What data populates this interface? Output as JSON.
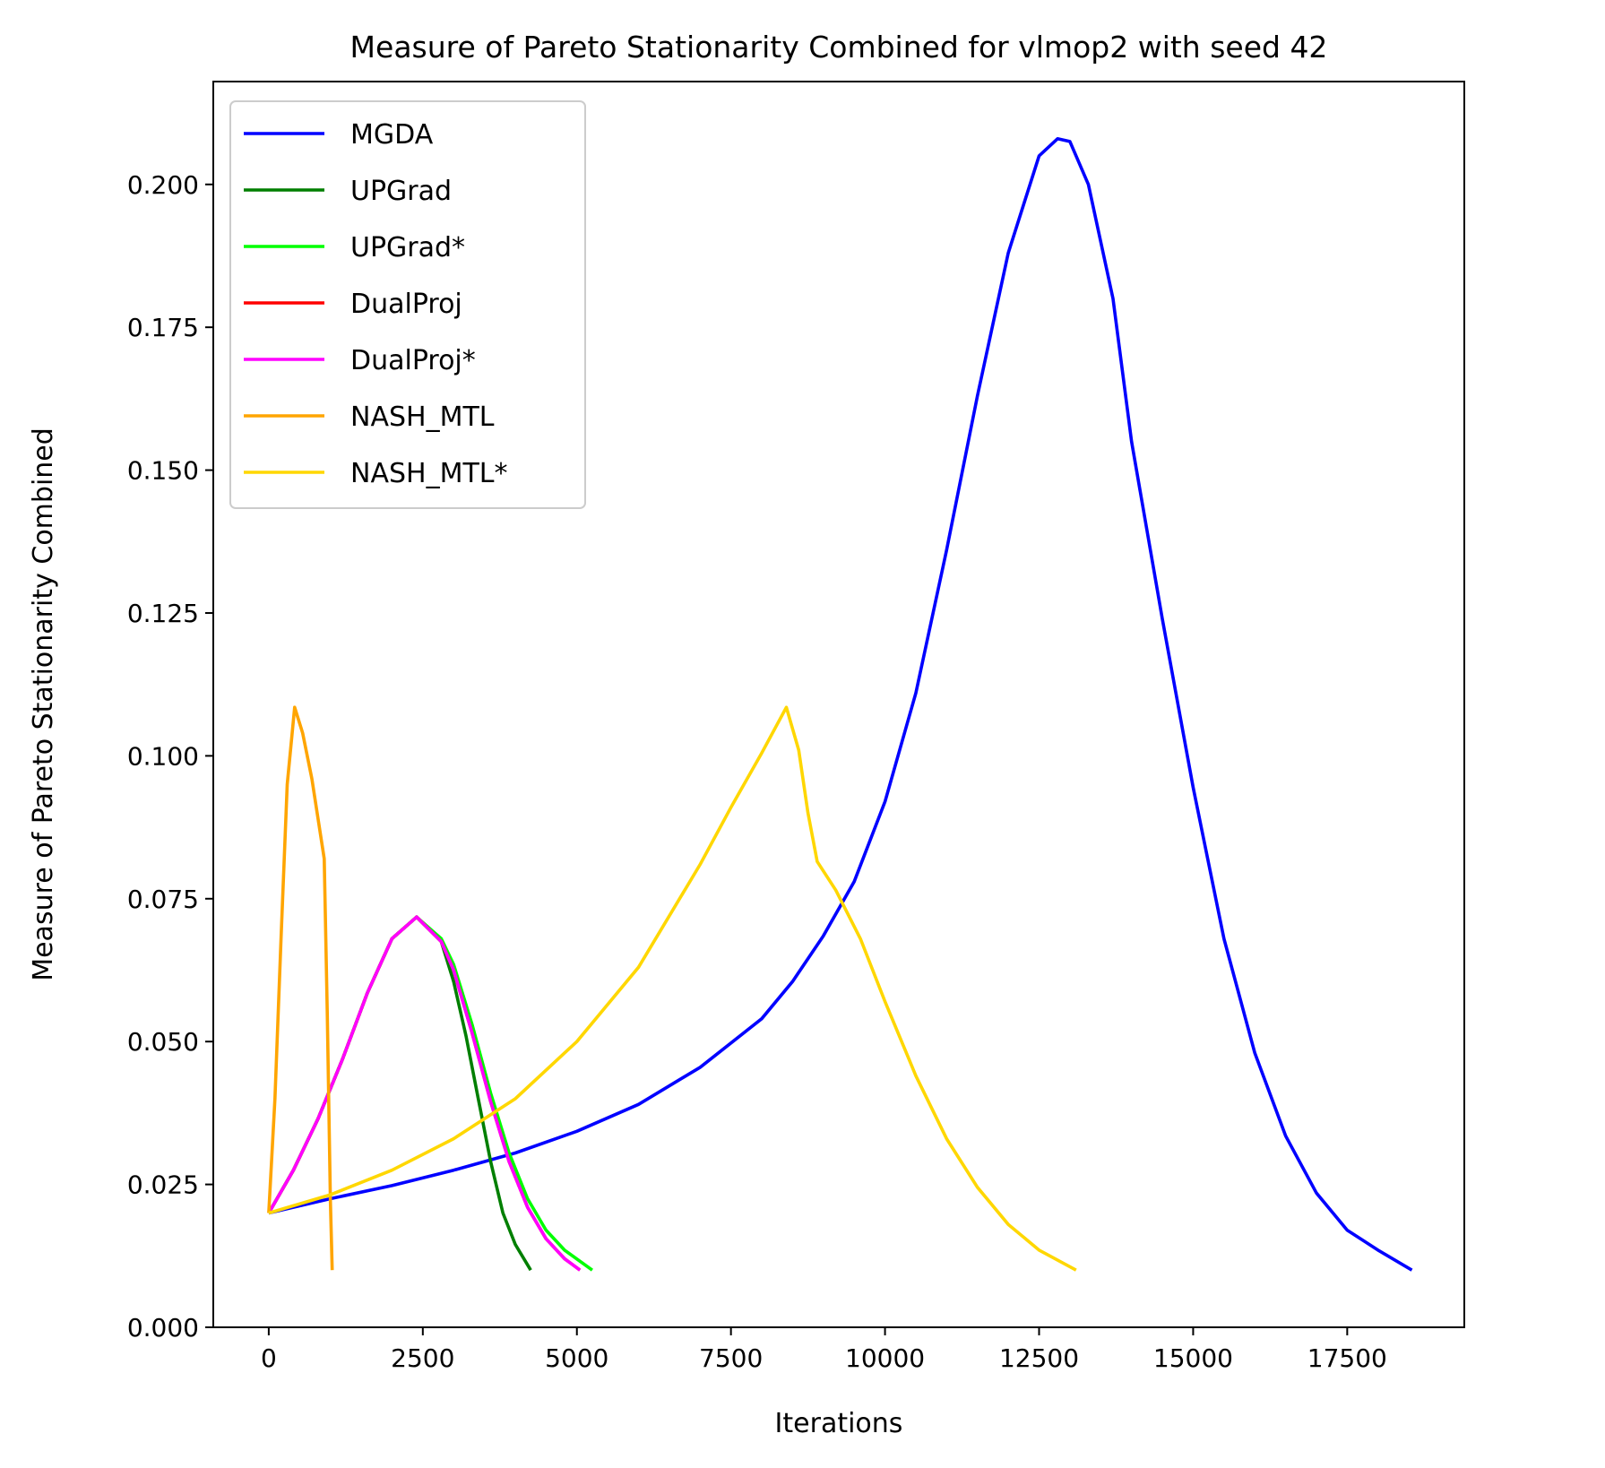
{
  "chart_data": {
    "type": "line",
    "title": "Measure of Pareto Stationarity Combined for vlmop2 with seed 42",
    "xlabel": "Iterations",
    "ylabel": "Measure of Pareto Stationarity Combined",
    "xlim": [
      -900,
      19400
    ],
    "ylim": [
      0,
      0.218
    ],
    "xticks": [
      0,
      2500,
      5000,
      7500,
      10000,
      12500,
      15000,
      17500
    ],
    "xtick_labels": [
      "0",
      "2500",
      "5000",
      "7500",
      "10000",
      "12500",
      "15000",
      "17500"
    ],
    "yticks": [
      0,
      0.025,
      0.05,
      0.075,
      0.1,
      0.125,
      0.15,
      0.175,
      0.2
    ],
    "ytick_labels": [
      "0.000",
      "0.025",
      "0.050",
      "0.075",
      "0.100",
      "0.125",
      "0.150",
      "0.175",
      "0.200"
    ],
    "grid": false,
    "legend_position": "upper-left",
    "series": [
      {
        "name": "MGDA",
        "color": "#0000ff",
        "x": [
          0,
          1000,
          2000,
          3000,
          4000,
          5000,
          6000,
          7000,
          8000,
          8500,
          9000,
          9500,
          10000,
          10500,
          11000,
          11500,
          12000,
          12500,
          12800,
          13000,
          13300,
          13700,
          14000,
          14500,
          15000,
          15500,
          16000,
          16500,
          17000,
          17500,
          18000,
          18550
        ],
        "y": [
          0.02,
          0.0225,
          0.0248,
          0.0275,
          0.0305,
          0.0343,
          0.039,
          0.0455,
          0.054,
          0.0605,
          0.0685,
          0.078,
          0.092,
          0.111,
          0.136,
          0.163,
          0.188,
          0.205,
          0.208,
          0.2075,
          0.2,
          0.18,
          0.155,
          0.124,
          0.0945,
          0.068,
          0.048,
          0.0335,
          0.0235,
          0.017,
          0.0135,
          0.01
        ]
      },
      {
        "name": "UPGrad",
        "color": "#007f00",
        "x": [
          0,
          400,
          800,
          1200,
          1600,
          2000,
          2400,
          2800,
          3000,
          3200,
          3400,
          3600,
          3800,
          4000,
          4250
        ],
        "y": [
          0.02,
          0.0275,
          0.0365,
          0.047,
          0.0585,
          0.068,
          0.0718,
          0.0675,
          0.0605,
          0.051,
          0.04,
          0.029,
          0.02,
          0.0145,
          0.01
        ]
      },
      {
        "name": "UPGrad*",
        "color": "#00ff00",
        "x": [
          0,
          400,
          800,
          1200,
          1600,
          2000,
          2400,
          2800,
          3000,
          3300,
          3600,
          3900,
          4200,
          4500,
          4800,
          5250
        ],
        "y": [
          0.02,
          0.0275,
          0.0365,
          0.047,
          0.0585,
          0.068,
          0.0718,
          0.068,
          0.0635,
          0.053,
          0.041,
          0.0305,
          0.0225,
          0.017,
          0.0135,
          0.01
        ]
      },
      {
        "name": "DualProj",
        "color": "#ff0000",
        "x": [
          0,
          400,
          800,
          1200,
          1600,
          2000,
          2400,
          2800,
          3000,
          3300,
          3600,
          3900,
          4200,
          4500,
          4800,
          5050
        ],
        "y": [
          0.02,
          0.0275,
          0.0365,
          0.047,
          0.0585,
          0.068,
          0.0718,
          0.0675,
          0.0625,
          0.0515,
          0.0395,
          0.029,
          0.021,
          0.0155,
          0.012,
          0.01
        ]
      },
      {
        "name": "DualProj*",
        "color": "#ff00ff",
        "x": [
          0,
          400,
          800,
          1200,
          1600,
          2000,
          2400,
          2800,
          3000,
          3300,
          3600,
          3900,
          4200,
          4500,
          4800,
          5050
        ],
        "y": [
          0.02,
          0.0275,
          0.0365,
          0.047,
          0.0585,
          0.068,
          0.0718,
          0.0675,
          0.0625,
          0.0515,
          0.0395,
          0.029,
          0.021,
          0.0155,
          0.012,
          0.01
        ]
      },
      {
        "name": "NASH_MTL",
        "color": "#ffa500",
        "x": [
          0,
          100,
          200,
          300,
          420,
          550,
          700,
          800,
          900,
          950,
          1000,
          1030
        ],
        "y": [
          0.02,
          0.04,
          0.068,
          0.095,
          0.1085,
          0.104,
          0.096,
          0.089,
          0.082,
          0.055,
          0.022,
          0.01
        ]
      },
      {
        "name": "NASH_MTL*",
        "color": "#ffd700",
        "x": [
          0,
          1000,
          2000,
          3000,
          4000,
          5000,
          6000,
          7000,
          7500,
          8000,
          8400,
          8600,
          8750,
          8900,
          9200,
          9600,
          10000,
          10500,
          11000,
          11500,
          12000,
          12500,
          13100
        ],
        "y": [
          0.02,
          0.0232,
          0.0275,
          0.033,
          0.04,
          0.05,
          0.063,
          0.081,
          0.091,
          0.1005,
          0.1085,
          0.101,
          0.09,
          0.0815,
          0.0765,
          0.068,
          0.057,
          0.044,
          0.033,
          0.0245,
          0.018,
          0.0135,
          0.01
        ]
      }
    ]
  }
}
